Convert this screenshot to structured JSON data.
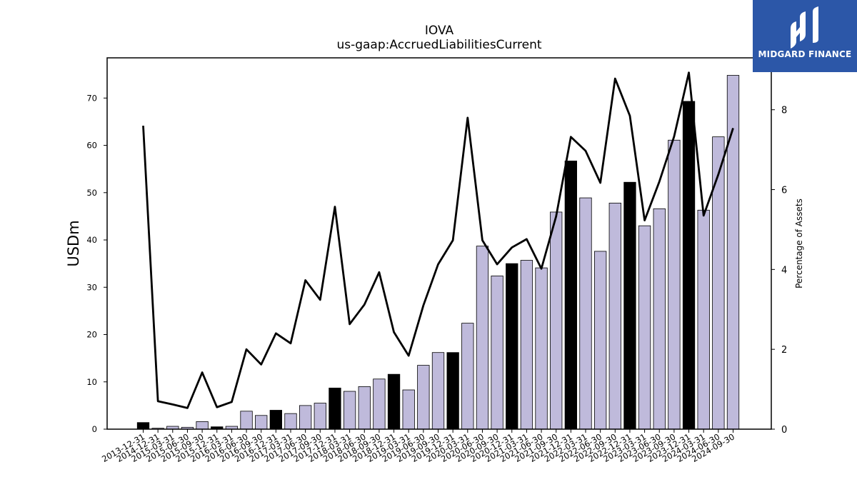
{
  "chart_data": {
    "type": "bar",
    "title": "IOVA",
    "subtitle": "us-gaap:AccruedLiabilitiesCurrent",
    "ylabel": "USDm",
    "y2label": "Percentage of Assets",
    "ylim": [
      0,
      78.5
    ],
    "y2lim": [
      0,
      9.3
    ],
    "yticks": [
      0,
      10,
      20,
      30,
      40,
      50,
      60,
      70
    ],
    "y2ticks": [
      0,
      2,
      4,
      6,
      8
    ],
    "grid": false,
    "categories": [
      "2013-12-31",
      "2014-12-31",
      "2015-03-31",
      "2015-06-30",
      "2015-09-30",
      "2015-12-31",
      "2016-03-31",
      "2016-06-30",
      "2016-09-30",
      "2016-12-31",
      "2017-03-31",
      "2017-06-30",
      "2017-09-30",
      "2017-12-31",
      "2018-03-31",
      "2018-06-30",
      "2018-09-30",
      "2018-12-31",
      "2019-03-31",
      "2019-06-30",
      "2019-09-30",
      "2019-12-31",
      "2020-03-31",
      "2020-06-30",
      "2020-09-30",
      "2020-12-31",
      "2021-03-31",
      "2021-06-30",
      "2021-09-30",
      "2021-12-31",
      "2022-03-31",
      "2022-06-30",
      "2022-09-30",
      "2022-12-31",
      "2023-03-31",
      "2023-06-30",
      "2023-09-30",
      "2023-12-31",
      "2024-03-31",
      "2024-06-30",
      "2024-09-30"
    ],
    "series": [
      {
        "kind": "bar",
        "values": [
          1.4,
          0.2,
          0.6,
          0.4,
          1.6,
          0.5,
          0.6,
          3.8,
          2.9,
          4.0,
          3.3,
          5.0,
          5.5,
          8.7,
          8.0,
          9.0,
          10.6,
          11.6,
          8.3,
          13.5,
          16.2,
          16.2,
          22.4,
          38.7,
          32.4,
          35.0,
          35.7,
          34.1,
          45.9,
          56.7,
          48.9,
          37.6,
          47.8,
          52.2,
          43.0,
          46.6,
          61.1,
          69.3,
          46.3,
          61.8,
          74.8
        ],
        "highlight": [
          true,
          false,
          false,
          false,
          false,
          true,
          false,
          false,
          false,
          true,
          false,
          false,
          false,
          true,
          false,
          false,
          false,
          true,
          false,
          false,
          false,
          true,
          false,
          false,
          false,
          true,
          false,
          false,
          false,
          true,
          false,
          false,
          false,
          true,
          false,
          false,
          false,
          true,
          false,
          false,
          false
        ]
      },
      {
        "kind": "line",
        "axis": "right",
        "values": [
          7.6,
          0.7,
          0.62,
          0.53,
          1.42,
          0.55,
          0.68,
          2.0,
          1.62,
          2.4,
          2.15,
          3.73,
          3.24,
          5.57,
          2.63,
          3.12,
          3.93,
          2.43,
          1.84,
          3.1,
          4.13,
          4.73,
          7.8,
          4.73,
          4.13,
          4.55,
          4.76,
          4.02,
          5.33,
          7.32,
          6.97,
          6.17,
          8.78,
          7.85,
          5.23,
          6.2,
          7.33,
          8.93,
          5.35,
          6.38,
          7.54
        ]
      }
    ],
    "colors": {
      "bar": "#bfbadb",
      "bar_highlight": "#000000",
      "line": "#000000"
    }
  },
  "logo": {
    "text": "MIDGARD FINANCE",
    "background": "#2c57a8"
  }
}
